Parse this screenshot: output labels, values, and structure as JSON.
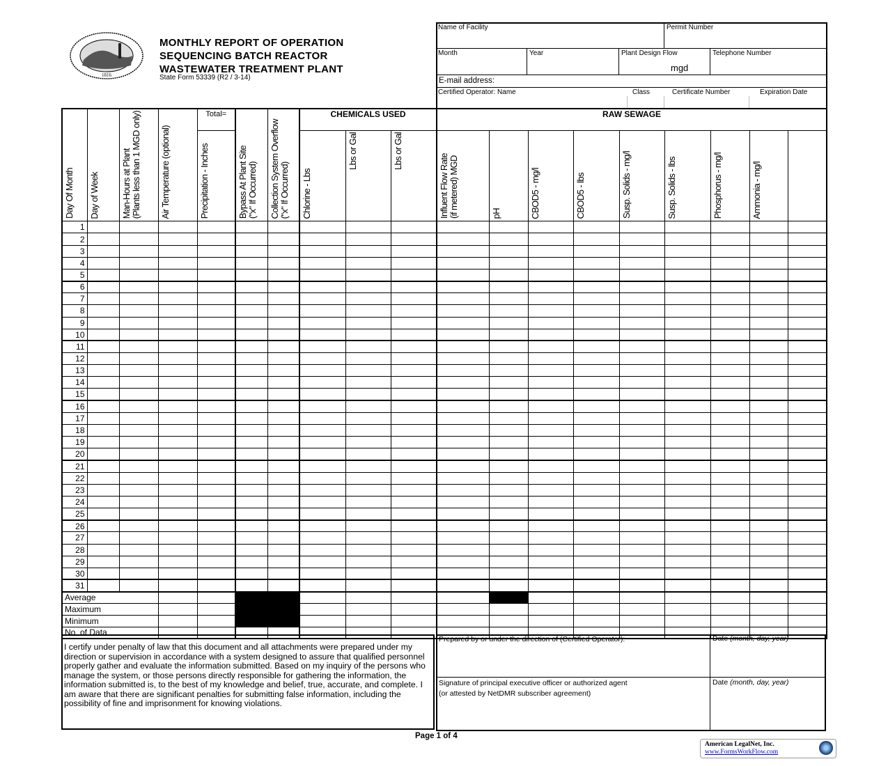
{
  "header": {
    "seal_text": "SEAL OF THE STATE OF INDIANA 1816",
    "title_lines": [
      "MONTHLY REPORT OF OPERATION",
      "SEQUENCING BATCH REACTOR",
      "WASTEWATER TREATMENT PLANT"
    ],
    "form_number": "State Form 53339 (R2 / 3-14)"
  },
  "facility": {
    "name_label": "Name of Facility",
    "permit_label": "Permit Number",
    "month_label": "Month",
    "year_label": "Year",
    "design_flow_label": "Plant Design Flow",
    "design_flow_unit": "mgd",
    "telephone_label": "Telephone Number",
    "email_label": "E-mail address:",
    "operator_label": "Certified Operator:  Name",
    "class_label": "Class",
    "certificate_label": "Certificate Number",
    "expiration_label": "Expiration Date"
  },
  "groups": {
    "total": "Total=",
    "chemicals": "CHEMICALS USED",
    "raw_sewage": "RAW SEWAGE"
  },
  "columns": [
    "Day Of Month",
    "Day of Week",
    "Man-Hours at Plant\n(Plants less than 1 MGD only)",
    "Air Temperature (optional)",
    "Precipitation - Inches",
    "Bypass At Plant Site\n(\"x\" If Occurred)",
    "Collection System Overflow\n(\"x\" If Occurred)",
    "Chlorine - Lbs",
    "Lbs or Gal",
    "Lbs or Gal",
    "Influent Flow Rate\n(if metered) MGD",
    "pH",
    "CBOD5 - mg/l",
    "CBOD5 - lbs",
    "Susp. Solids - mg/l",
    "Susp. Solids - lbs",
    "Phosphorus - mg/l",
    "Ammonia - mg/l",
    ""
  ],
  "days": [
    "1",
    "2",
    "3",
    "4",
    "5",
    "6",
    "7",
    "8",
    "9",
    "10",
    "11",
    "12",
    "13",
    "14",
    "15",
    "16",
    "17",
    "18",
    "19",
    "20",
    "21",
    "22",
    "23",
    "24",
    "25",
    "26",
    "27",
    "28",
    "29",
    "30",
    "31"
  ],
  "summary_rows": [
    "Average",
    "Maximum",
    "Minimum",
    "No. of Data"
  ],
  "certification_text": "I certify under penalty of law that this document and all attachments were prepared under my direction or supervision in accordance with a system designed to assure that qualified personnel properly gather and evaluate the information submitted. Based on my inquiry of the persons who manage the system, or those persons directly responsible for gathering the information, the information submitted is, to the best of my knowledge and belief, true, accurate, and complete. I am aware that there are significant penalties for submitting false information, including the possibility of fine and imprisonment for knowing violations.",
  "signatures": {
    "prepared_by": "Prepared by or under the direction of (Certified Operator):",
    "date_label_prefix": "Date ",
    "date_label_italic": "(month, day, year)",
    "signature_line1": "Signature of principal executive officer or authorized agent",
    "signature_line2": "(or attested by NetDMR subscriber agreement)"
  },
  "footer": {
    "page": "Page 1 of 4",
    "brand_name": "American LegalNet, Inc.",
    "brand_url": "www.FormsWorkFlow.com"
  }
}
